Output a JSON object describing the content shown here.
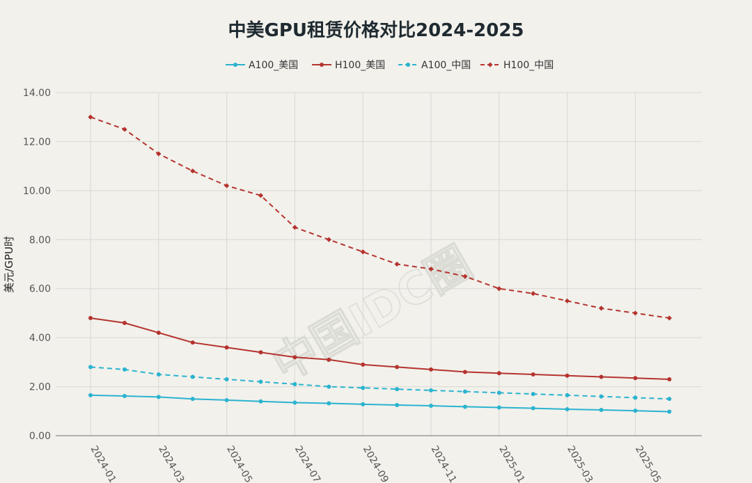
{
  "chart_data": {
    "type": "line",
    "title": "中美GPU租赁价格对比2024-2025",
    "ylabel": "美元/GPU时",
    "xlabel": "",
    "ylim": [
      0,
      14
    ],
    "yticks": [
      "0.00",
      "2.00",
      "4.00",
      "6.00",
      "8.00",
      "10.00",
      "12.00",
      "14.00"
    ],
    "x": [
      "2024-01",
      "2024-02",
      "2024-03",
      "2024-04",
      "2024-05",
      "2024-06",
      "2024-07",
      "2024-08",
      "2024-09",
      "2024-10",
      "2024-11",
      "2024-12",
      "2025-01",
      "2025-02",
      "2025-03",
      "2025-04",
      "2025-05",
      "2025-06"
    ],
    "xtick_labels": [
      "2024-01",
      "2024-03",
      "2024-05",
      "2024-07",
      "2024-09",
      "2024-11",
      "2025-01",
      "2025-03",
      "2025-05"
    ],
    "grid": true,
    "legend_position": "top",
    "series": [
      {
        "name": "A100_美国",
        "color": "#2ab3cf",
        "dash": false,
        "values": [
          1.65,
          1.62,
          1.58,
          1.5,
          1.45,
          1.4,
          1.35,
          1.32,
          1.28,
          1.25,
          1.22,
          1.18,
          1.15,
          1.12,
          1.08,
          1.05,
          1.02,
          0.98
        ]
      },
      {
        "name": "H100_美国",
        "color": "#b5332e",
        "dash": false,
        "values": [
          4.8,
          4.6,
          4.2,
          3.8,
          3.6,
          3.4,
          3.2,
          3.1,
          2.9,
          2.8,
          2.7,
          2.6,
          2.55,
          2.5,
          2.45,
          2.4,
          2.35,
          2.3
        ]
      },
      {
        "name": "A100_中国",
        "color": "#2ab3cf",
        "dash": true,
        "values": [
          2.8,
          2.7,
          2.5,
          2.4,
          2.3,
          2.2,
          2.1,
          2.0,
          1.95,
          1.9,
          1.85,
          1.8,
          1.75,
          1.7,
          1.65,
          1.6,
          1.55,
          1.5
        ]
      },
      {
        "name": "H100_中国",
        "color": "#b5332e",
        "dash": true,
        "values": [
          13.0,
          12.5,
          11.5,
          10.8,
          10.2,
          9.8,
          8.5,
          8.0,
          7.5,
          7.0,
          6.8,
          6.5,
          6.0,
          5.8,
          5.5,
          5.2,
          5.0,
          4.8
        ]
      }
    ]
  },
  "watermark": {
    "text": "中国IDC圈"
  }
}
